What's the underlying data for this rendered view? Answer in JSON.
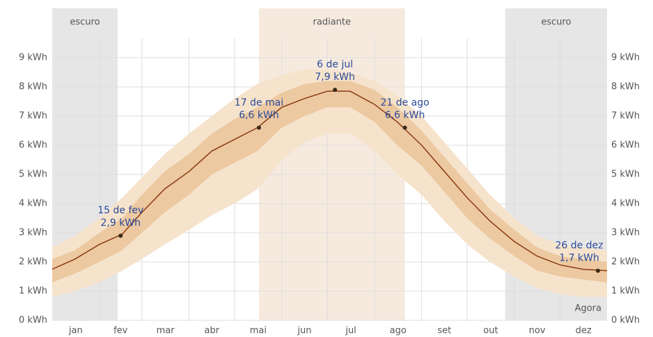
{
  "chart_data": {
    "type": "band-line",
    "xlim": [
      0,
      365
    ],
    "xticks": [
      31,
      59,
      90,
      120,
      151,
      181,
      212,
      243,
      273,
      304,
      334
    ],
    "categories": [
      "jan",
      "fev",
      "mar",
      "abr",
      "mai",
      "jun",
      "jul",
      "ago",
      "set",
      "out",
      "nov",
      "dez"
    ],
    "ylim": [
      0,
      9
    ],
    "yticks": [
      {
        "value": 0,
        "label": "0 kWh"
      },
      {
        "value": 1,
        "label": "1 kWh"
      },
      {
        "value": 2,
        "label": "2 kWh"
      },
      {
        "value": 3,
        "label": "3 kWh"
      },
      {
        "value": 4,
        "label": "4 kWh"
      },
      {
        "value": 5,
        "label": "5 kWh"
      },
      {
        "value": 6,
        "label": "6 kWh"
      },
      {
        "value": 7,
        "label": "7 kWh"
      },
      {
        "value": 8,
        "label": "8 kWh"
      },
      {
        "value": 9,
        "label": "9 kWh"
      }
    ],
    "grid": true,
    "regions": [
      {
        "label": "escuro",
        "range": [
          0,
          43
        ],
        "color": "#e6e6e6"
      },
      {
        "label": "radiante",
        "range": [
          136,
          232
        ],
        "color": "#f6eadf"
      },
      {
        "label": "escuro",
        "range": [
          298,
          365
        ],
        "color": "#e6e6e6"
      }
    ],
    "x": [
      0,
      15,
      31,
      46,
      59,
      74,
      90,
      105,
      120,
      135,
      151,
      166,
      181,
      196,
      212,
      227,
      243,
      258,
      273,
      288,
      304,
      319,
      334,
      349,
      365
    ],
    "bands": [
      {
        "color": "#f6e3cc",
        "upper": [
          2.5,
          2.9,
          3.5,
          4.2,
          4.9,
          5.7,
          6.4,
          7.0,
          7.6,
          8.1,
          8.4,
          8.6,
          8.6,
          8.5,
          8.2,
          7.7,
          7.0,
          6.1,
          5.2,
          4.3,
          3.5,
          2.9,
          2.6,
          2.5,
          2.4
        ],
        "lower": [
          0.8,
          1.0,
          1.3,
          1.7,
          2.1,
          2.6,
          3.1,
          3.6,
          4.0,
          4.5,
          5.5,
          6.1,
          6.4,
          6.4,
          5.8,
          5.0,
          4.3,
          3.4,
          2.6,
          2.0,
          1.5,
          1.1,
          0.9,
          0.8,
          0.8
        ]
      },
      {
        "color": "#ecc9a1",
        "upper": [
          2.1,
          2.4,
          3.0,
          3.5,
          4.3,
          5.1,
          5.7,
          6.4,
          6.9,
          7.3,
          7.8,
          8.1,
          8.2,
          8.2,
          7.9,
          7.3,
          6.5,
          5.6,
          4.7,
          3.8,
          3.1,
          2.5,
          2.2,
          2.1,
          2.0
        ],
        "lower": [
          1.3,
          1.6,
          2.0,
          2.4,
          3.0,
          3.7,
          4.3,
          5.0,
          5.4,
          5.8,
          6.6,
          7.0,
          7.3,
          7.3,
          6.8,
          6.0,
          5.3,
          4.4,
          3.5,
          2.8,
          2.2,
          1.7,
          1.5,
          1.4,
          1.3
        ]
      }
    ],
    "line": {
      "color": "#8a3b12",
      "values": [
        1.75,
        2.1,
        2.6,
        2.95,
        3.7,
        4.5,
        5.1,
        5.8,
        6.2,
        6.6,
        7.3,
        7.6,
        7.85,
        7.85,
        7.4,
        6.8,
        6.0,
        5.1,
        4.2,
        3.4,
        2.7,
        2.2,
        1.9,
        1.75,
        1.7
      ]
    },
    "annotations": [
      {
        "date": "15 de fev",
        "x": 45,
        "value": 2.9,
        "value_label": "2,9 kWh"
      },
      {
        "date": "17 de mai",
        "x": 136,
        "value": 6.6,
        "value_label": "6,6 kWh"
      },
      {
        "date": "6 de jul",
        "x": 186,
        "value": 7.9,
        "value_label": "7,9 kWh"
      },
      {
        "date": "21 de ago",
        "x": 232,
        "value": 6.6,
        "value_label": "6,6 kWh"
      },
      {
        "date": "26 de dez",
        "x": 359,
        "value": 1.7,
        "value_label": "1,7 kWh"
      }
    ],
    "now_label": "Agora"
  }
}
